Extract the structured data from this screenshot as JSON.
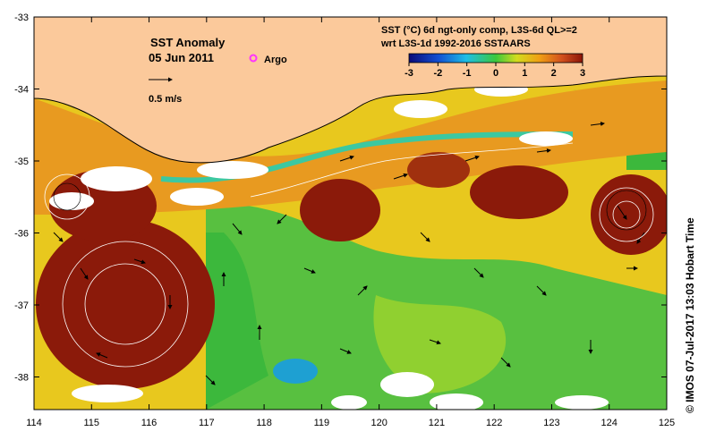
{
  "title": "SST Anomaly",
  "date": "05 Jun 2011",
  "argo_label": "Argo",
  "velocity_scale_label": "0.5 m/s",
  "header_line1": "SST (°C) 6d ngt-only comp, L3S-6d QL>=2",
  "header_line2": "wrt L3S-1d 1992-2016 SSTAARS",
  "colorbar": {
    "ticks": [
      "-3",
      "-2",
      "-1",
      "0",
      "1",
      "2",
      "3"
    ],
    "min": -3,
    "max": 3
  },
  "lon_ticks": [
    "114",
    "115",
    "116",
    "117",
    "118",
    "119",
    "120",
    "121",
    "122",
    "123",
    "124",
    "125"
  ],
  "lat_ticks": [
    "-33",
    "-34",
    "-35",
    "-36",
    "-37",
    "-38"
  ],
  "credit": "© IMOS 07-Jul-2017 13:03 Hobart Time",
  "colors": {
    "land": "#fbc99b",
    "warm_dark": "#8b1a0a",
    "warm": "#d98a1e",
    "neutral": "#e8d21e",
    "cool": "#3cc63c",
    "cold": "#1ea0d2",
    "argo": "#ff33ff"
  }
}
